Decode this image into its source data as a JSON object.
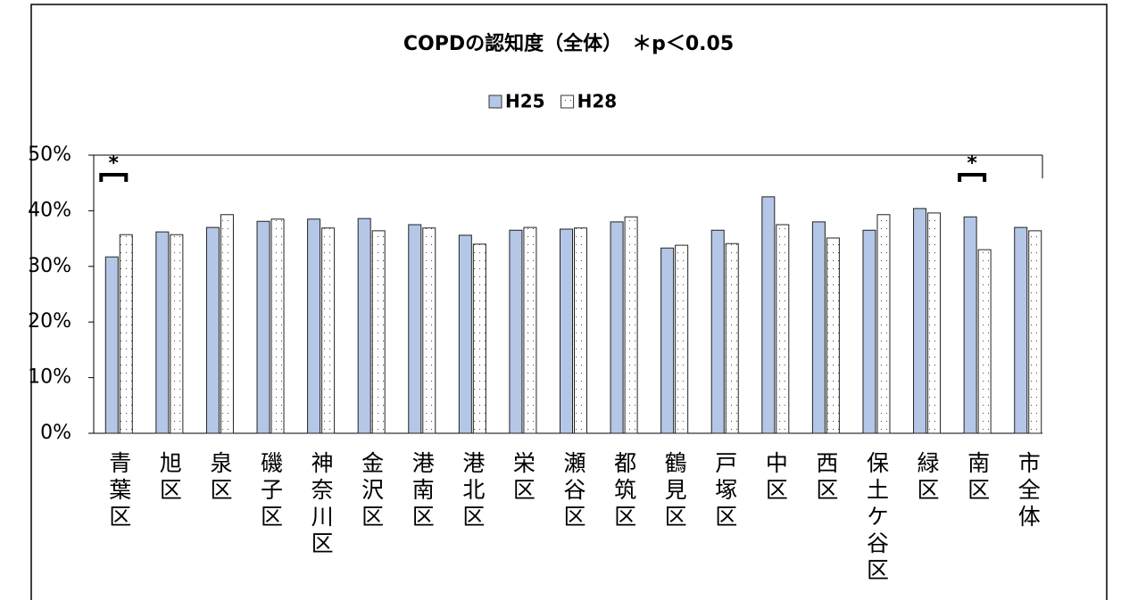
{
  "chart_data": {
    "type": "bar",
    "title": "COPDの認知度（全体）　＊p＜0.05",
    "categories": [
      "青葉区",
      "旭区",
      "泉区",
      "磯子区",
      "神奈川区",
      "金沢区",
      "港南区",
      "港北区",
      "栄区",
      "瀬谷区",
      "都筑区",
      "鶴見区",
      "戸塚区",
      "中区",
      "西区",
      "保土ケ谷区",
      "緑区",
      "南区",
      "市全体"
    ],
    "series": [
      {
        "name": "H25",
        "color": "#b4c7e7",
        "values": [
          31.7,
          36.2,
          37.0,
          38.1,
          38.5,
          38.6,
          37.5,
          35.6,
          36.5,
          36.7,
          38.0,
          33.3,
          36.5,
          42.5,
          38.0,
          36.5,
          40.4,
          38.9,
          37.0
        ]
      },
      {
        "name": "H28",
        "color": "#ffffff",
        "values": [
          35.7,
          35.7,
          39.3,
          38.5,
          36.9,
          36.4,
          36.9,
          34.0,
          37.0,
          36.9,
          38.9,
          33.8,
          34.1,
          37.5,
          35.1,
          39.3,
          39.6,
          33.0,
          36.4
        ]
      }
    ],
    "ylim": [
      0,
      50
    ],
    "yticks": [
      {
        "value": 0,
        "label": "0%"
      },
      {
        "value": 10,
        "label": "10%"
      },
      {
        "value": 20,
        "label": "20%"
      },
      {
        "value": 30,
        "label": "30%"
      },
      {
        "value": 40,
        "label": "40%"
      },
      {
        "value": 50,
        "label": "50%"
      }
    ],
    "annotations": [
      {
        "text": "*",
        "category": "青葉区"
      },
      {
        "text": "*",
        "category": "南区"
      }
    ],
    "legend": "top"
  }
}
